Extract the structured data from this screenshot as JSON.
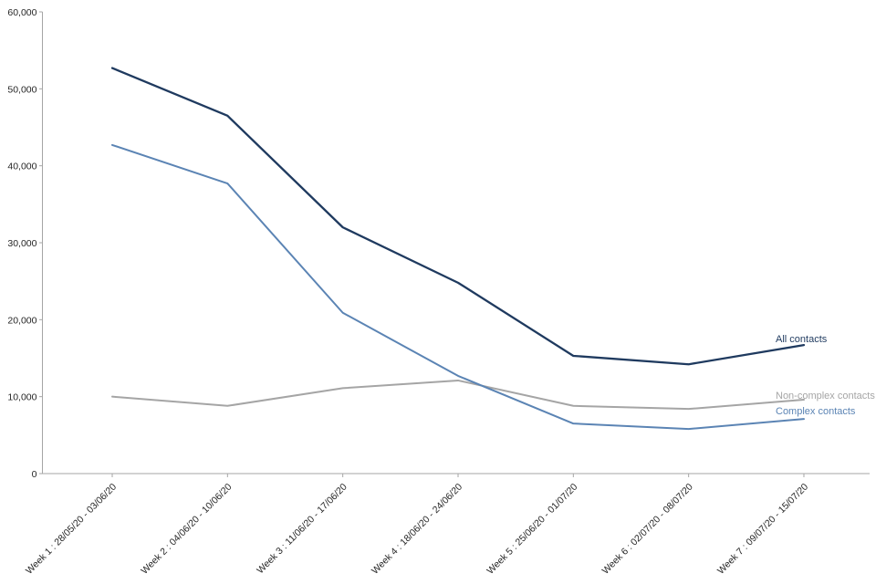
{
  "chart_data": {
    "type": "line",
    "title": "",
    "xlabel": "",
    "ylabel": "",
    "grid": false,
    "legend_position": "line-end-labels-right",
    "categories": [
      "Week 1 : 28/05/20 - 03/06/20",
      "Week 2 : 04/06/20 - 10/06/20",
      "Week 3 : 11/06/20 - 17/06/20",
      "Week 4 : 18/06/20 - 24/06/20",
      "Week 5 : 25/06/20 - 01/07/20",
      "Week 6 : 02/07/20 - 08/07/20",
      "Week 7 : 09/07/20 - 15/07/20"
    ],
    "series": [
      {
        "name": "All contacts",
        "color": "#1f3a5f",
        "values": [
          52700,
          46500,
          32000,
          24800,
          15300,
          14200,
          16700
        ]
      },
      {
        "name": "Non-complex contacts",
        "color": "#a5a5a5",
        "values": [
          10000,
          8800,
          11100,
          12100,
          8800,
          8400,
          9600
        ]
      },
      {
        "name": "Complex contacts",
        "color": "#5b84b4",
        "values": [
          42700,
          37700,
          20900,
          12700,
          6500,
          5800,
          7100
        ]
      }
    ],
    "y_ticks": [
      "0",
      "10,000",
      "20,000",
      "30,000",
      "40,000",
      "50,000",
      "60,000"
    ],
    "ylim": [
      0,
      60000
    ],
    "axis_color": "#a6a6a6",
    "tick_label_color": "#262626"
  }
}
